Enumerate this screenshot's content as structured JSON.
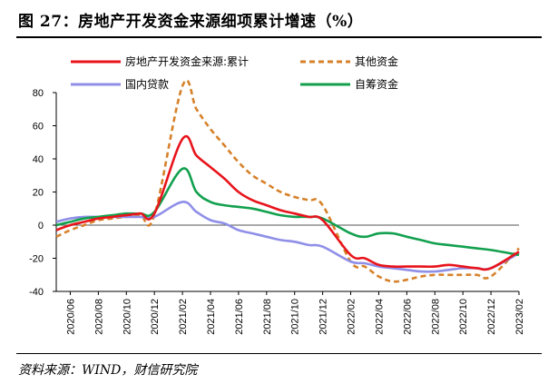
{
  "figure": {
    "title": "图 27：房地产开发资金来源细项累计增速（%）",
    "source": "资料来源：WIND，财信研究院"
  },
  "chart_data": {
    "type": "line",
    "x": [
      "2020/05",
      "2020/06",
      "2020/07",
      "2020/08",
      "2020/09",
      "2020/10",
      "2020/11",
      "2020/12",
      "2021/02",
      "2021/03",
      "2021/04",
      "2021/05",
      "2021/06",
      "2021/07",
      "2021/08",
      "2021/09",
      "2021/10",
      "2021/11",
      "2021/12",
      "2022/02",
      "2022/03",
      "2022/04",
      "2022/05",
      "2022/06",
      "2022/07",
      "2022/08",
      "2022/09",
      "2022/10",
      "2022/11",
      "2022/12",
      "2023/02"
    ],
    "xtick_labels": [
      "2020/06",
      "2020/08",
      "2020/10",
      "2020/12",
      "2021/02",
      "2021/04",
      "2021/06",
      "2021/08",
      "2021/10",
      "2021/12",
      "2022/02",
      "2022/04",
      "2022/06",
      "2022/08",
      "2022/10",
      "2022/12",
      "2023/02"
    ],
    "ylim": [
      -40,
      80
    ],
    "yticks": [
      -40,
      -20,
      0,
      20,
      40,
      60,
      80
    ],
    "legend_position": "top",
    "series": [
      {
        "name": "房地产开发资金来源:累计",
        "color": "#e8141c",
        "dash": "solid",
        "values": [
          -3,
          0,
          2,
          4,
          5,
          6,
          7,
          7,
          52,
          42,
          35,
          28,
          20,
          15,
          12,
          9,
          7,
          5,
          3,
          -18,
          -20,
          -24,
          -25,
          -25,
          -25,
          -25,
          -24,
          -25,
          -26,
          -26,
          -16
        ]
      },
      {
        "name": "其他资金",
        "color": "#d6812a",
        "dash": "dashed",
        "values": [
          -7,
          -3,
          0,
          3,
          4,
          5,
          6,
          6,
          84,
          70,
          58,
          48,
          38,
          30,
          25,
          20,
          17,
          15,
          12,
          -22,
          -25,
          -31,
          -34,
          -33,
          -31,
          -30,
          -30,
          -30,
          -30,
          -31,
          -14
        ]
      },
      {
        "name": "国内贷款",
        "color": "#8f8fe8",
        "dash": "solid",
        "values": [
          2,
          4,
          5,
          5,
          5,
          5,
          5,
          5,
          14,
          8,
          3,
          1,
          -3,
          -5,
          -7,
          -9,
          -10,
          -12,
          -13,
          -22,
          -23,
          -25,
          -26,
          -27,
          -28,
          -28,
          -27,
          -26,
          -26,
          -26,
          -17
        ]
      },
      {
        "name": "自筹资金",
        "color": "#12a04e",
        "dash": "solid",
        "values": [
          0,
          2,
          4,
          5,
          6,
          7,
          7,
          8,
          34,
          20,
          14,
          12,
          11,
          10,
          8,
          6,
          5,
          5,
          4,
          -5,
          -7,
          -5,
          -5,
          -7,
          -9,
          -11,
          -12,
          -13,
          -14,
          -15,
          -18
        ]
      }
    ]
  }
}
